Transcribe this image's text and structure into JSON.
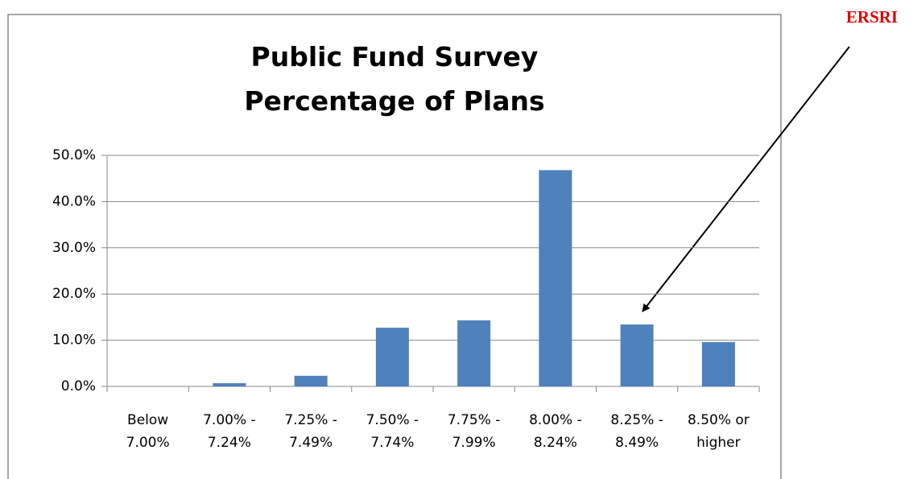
{
  "chart_data": {
    "type": "bar",
    "title_lines": [
      "Public Fund Survey",
      "Percentage of Plans"
    ],
    "annotation": "ERSRI",
    "categories": [
      "Below 7.00%",
      "7.00% - 7.24%",
      "7.25% - 7.49%",
      "7.50% - 7.74%",
      "7.75% - 7.99%",
      "8.00% - 8.24%",
      "8.25% - 8.49%",
      "8.50% or higher"
    ],
    "values": [
      0,
      0.7,
      2.3,
      12.7,
      14.3,
      46.8,
      13.4,
      9.6
    ],
    "color": "#4f81bd",
    "ylim": [
      0,
      50
    ],
    "yticks": [
      {
        "value": 0,
        "label": "0.0%"
      },
      {
        "value": 10,
        "label": "10.0%"
      },
      {
        "value": 20,
        "label": "20.0%"
      },
      {
        "value": 30,
        "label": "30.0%"
      },
      {
        "value": 40,
        "label": "40.0%"
      },
      {
        "value": 50,
        "label": "50.0%"
      }
    ],
    "grid": true
  }
}
